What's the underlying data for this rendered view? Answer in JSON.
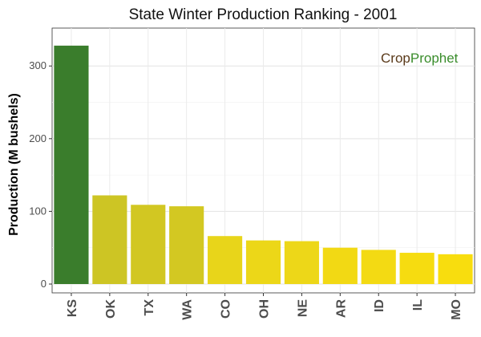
{
  "chart_data": {
    "type": "bar",
    "title": "State Winter  Production Ranking - 2001",
    "xlabel": "",
    "ylabel": "Production (M bushels)",
    "categories": [
      "KS",
      "OK",
      "TX",
      "WA",
      "CO",
      "OH",
      "NE",
      "AR",
      "ID",
      "IL",
      "MO"
    ],
    "values": [
      328,
      122,
      109,
      107,
      66,
      60,
      59,
      50,
      47,
      43,
      41
    ],
    "ylim": [
      0,
      340
    ],
    "yticks": [
      0,
      100,
      200,
      300
    ],
    "grid": true,
    "legend": "none",
    "colors": [
      "#3a7d2c",
      "#cdc524",
      "#d2c722",
      "#d3c822",
      "#e8d51a",
      "#ecd718",
      "#edd718",
      "#f2d914",
      "#f3da13",
      "#f6dc10",
      "#f8dd0e"
    ]
  },
  "logo": {
    "part1": "Crop",
    "part2": "Prophet",
    "color1": "#5a3a1a",
    "color2": "#3a8d2c"
  }
}
